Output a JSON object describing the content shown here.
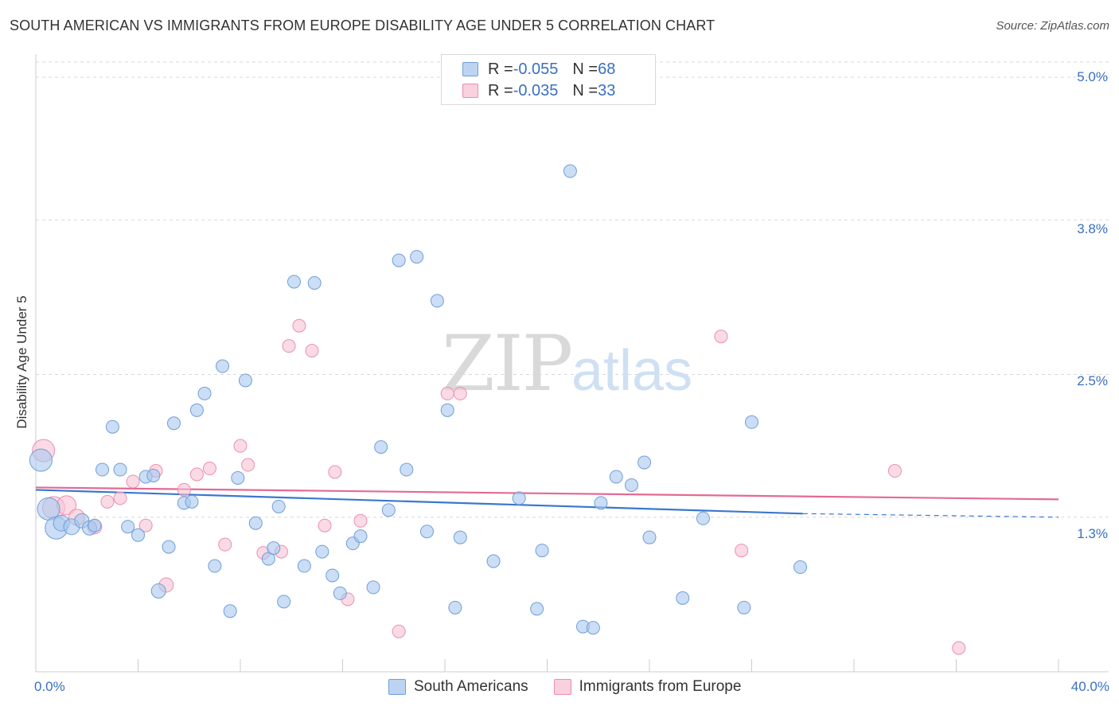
{
  "header": {
    "title": "SOUTH AMERICAN VS IMMIGRANTS FROM EUROPE DISABILITY AGE UNDER 5 CORRELATION CHART",
    "source": "Source: ZipAtlas.com"
  },
  "watermark": {
    "zip": "ZIP",
    "atlas": "atlas"
  },
  "legend_top": {
    "rows": [
      {
        "r_label": "R = ",
        "r_value": "-0.055",
        "n_label": "N = ",
        "n_value": "68"
      },
      {
        "r_label": "R = ",
        "r_value": "-0.035",
        "n_label": "N = ",
        "n_value": "33"
      }
    ]
  },
  "colors": {
    "blue_fill": "#a9c8ef",
    "blue_stroke": "#6f9fd8",
    "blue_line": "#3a78cf",
    "pink_fill": "#f7c3d3",
    "pink_stroke": "#ec8fab",
    "pink_line": "#e36a95",
    "axis_text": "#3a6fc4",
    "grid": "#d8d8d8"
  },
  "chart_data": {
    "type": "scatter",
    "title": "SOUTH AMERICAN VS IMMIGRANTS FROM EUROPE DISABILITY AGE UNDER 5 CORRELATION CHART",
    "ylabel": "Disability Age Under 5",
    "xlabel": "",
    "xlim": [
      0,
      40
    ],
    "ylim": [
      0.0,
      5.1
    ],
    "x_tick_labels": [
      "0.0%",
      "40.0%"
    ],
    "y_ticks": [
      1.3,
      2.5,
      3.8,
      5.0
    ],
    "y_tick_labels": [
      "1.3%",
      "2.5%",
      "3.8%",
      "5.0%"
    ],
    "grid": "horizontal dashed",
    "legend_position": "bottom",
    "series": [
      {
        "name": "South Americans",
        "color": "#a9c8ef",
        "R": -0.055,
        "N": 68,
        "trend": {
          "x": [
            0,
            30,
            40
          ],
          "y": [
            1.53,
            1.33,
            1.3
          ],
          "dashed_from_x": 30
        },
        "points": [
          {
            "x": 0.2,
            "y": 1.78,
            "s": 14
          },
          {
            "x": 0.5,
            "y": 1.37,
            "s": 14
          },
          {
            "x": 0.8,
            "y": 1.21,
            "s": 14
          },
          {
            "x": 1.0,
            "y": 1.25,
            "s": 10
          },
          {
            "x": 1.4,
            "y": 1.22,
            "s": 10
          },
          {
            "x": 1.8,
            "y": 1.27,
            "s": 9
          },
          {
            "x": 2.1,
            "y": 1.21,
            "s": 9
          },
          {
            "x": 2.3,
            "y": 1.23,
            "s": 8
          },
          {
            "x": 2.6,
            "y": 1.7,
            "s": 8
          },
          {
            "x": 3.0,
            "y": 2.06,
            "s": 8
          },
          {
            "x": 3.3,
            "y": 1.7,
            "s": 8
          },
          {
            "x": 3.6,
            "y": 1.22,
            "s": 8
          },
          {
            "x": 4.0,
            "y": 1.15,
            "s": 8
          },
          {
            "x": 4.3,
            "y": 1.64,
            "s": 8
          },
          {
            "x": 4.6,
            "y": 1.65,
            "s": 8
          },
          {
            "x": 4.8,
            "y": 0.68,
            "s": 9
          },
          {
            "x": 5.2,
            "y": 1.05,
            "s": 8
          },
          {
            "x": 5.4,
            "y": 2.09,
            "s": 8
          },
          {
            "x": 5.8,
            "y": 1.42,
            "s": 8
          },
          {
            "x": 6.1,
            "y": 1.43,
            "s": 8
          },
          {
            "x": 6.3,
            "y": 2.2,
            "s": 8
          },
          {
            "x": 6.6,
            "y": 2.34,
            "s": 8
          },
          {
            "x": 7.0,
            "y": 0.89,
            "s": 8
          },
          {
            "x": 7.3,
            "y": 2.57,
            "s": 8
          },
          {
            "x": 7.6,
            "y": 0.51,
            "s": 8
          },
          {
            "x": 7.9,
            "y": 1.63,
            "s": 8
          },
          {
            "x": 8.2,
            "y": 2.45,
            "s": 8
          },
          {
            "x": 8.6,
            "y": 1.25,
            "s": 8
          },
          {
            "x": 9.1,
            "y": 0.95,
            "s": 8
          },
          {
            "x": 9.3,
            "y": 1.04,
            "s": 8
          },
          {
            "x": 9.5,
            "y": 1.39,
            "s": 8
          },
          {
            "x": 9.7,
            "y": 0.59,
            "s": 8
          },
          {
            "x": 10.1,
            "y": 3.28,
            "s": 8
          },
          {
            "x": 10.5,
            "y": 0.89,
            "s": 8
          },
          {
            "x": 10.9,
            "y": 3.27,
            "s": 8
          },
          {
            "x": 11.2,
            "y": 1.01,
            "s": 8
          },
          {
            "x": 11.6,
            "y": 0.81,
            "s": 8
          },
          {
            "x": 11.9,
            "y": 0.66,
            "s": 8
          },
          {
            "x": 12.4,
            "y": 1.08,
            "s": 8
          },
          {
            "x": 12.7,
            "y": 1.14,
            "s": 8
          },
          {
            "x": 13.2,
            "y": 0.71,
            "s": 8
          },
          {
            "x": 13.5,
            "y": 1.89,
            "s": 8
          },
          {
            "x": 13.8,
            "y": 1.36,
            "s": 8
          },
          {
            "x": 14.2,
            "y": 3.46,
            "s": 8
          },
          {
            "x": 14.5,
            "y": 1.7,
            "s": 8
          },
          {
            "x": 14.9,
            "y": 3.49,
            "s": 8
          },
          {
            "x": 15.3,
            "y": 1.18,
            "s": 8
          },
          {
            "x": 15.7,
            "y": 3.12,
            "s": 8
          },
          {
            "x": 16.1,
            "y": 2.2,
            "s": 8
          },
          {
            "x": 16.4,
            "y": 0.54,
            "s": 8
          },
          {
            "x": 16.6,
            "y": 1.13,
            "s": 8
          },
          {
            "x": 17.9,
            "y": 0.93,
            "s": 8
          },
          {
            "x": 18.9,
            "y": 1.46,
            "s": 8
          },
          {
            "x": 19.6,
            "y": 0.53,
            "s": 8
          },
          {
            "x": 19.8,
            "y": 1.02,
            "s": 8
          },
          {
            "x": 20.9,
            "y": 4.21,
            "s": 8
          },
          {
            "x": 21.4,
            "y": 0.38,
            "s": 8
          },
          {
            "x": 21.8,
            "y": 0.37,
            "s": 8
          },
          {
            "x": 22.1,
            "y": 1.42,
            "s": 8
          },
          {
            "x": 22.7,
            "y": 1.64,
            "s": 8
          },
          {
            "x": 23.3,
            "y": 1.57,
            "s": 8
          },
          {
            "x": 23.8,
            "y": 1.76,
            "s": 8
          },
          {
            "x": 24.0,
            "y": 1.13,
            "s": 8
          },
          {
            "x": 25.3,
            "y": 0.62,
            "s": 8
          },
          {
            "x": 26.1,
            "y": 1.29,
            "s": 8
          },
          {
            "x": 27.7,
            "y": 0.54,
            "s": 8
          },
          {
            "x": 28.0,
            "y": 2.1,
            "s": 8
          },
          {
            "x": 29.9,
            "y": 0.88,
            "s": 8
          }
        ]
      },
      {
        "name": "Immigrants from Europe",
        "color": "#f7c3d3",
        "R": -0.035,
        "N": 33,
        "trend": {
          "x": [
            0,
            40
          ],
          "y": [
            1.55,
            1.45
          ]
        },
        "points": [
          {
            "x": 0.3,
            "y": 1.86,
            "s": 14
          },
          {
            "x": 0.7,
            "y": 1.38,
            "s": 14
          },
          {
            "x": 1.2,
            "y": 1.4,
            "s": 12
          },
          {
            "x": 1.6,
            "y": 1.3,
            "s": 10
          },
          {
            "x": 2.3,
            "y": 1.22,
            "s": 9
          },
          {
            "x": 2.8,
            "y": 1.43,
            "s": 8
          },
          {
            "x": 3.3,
            "y": 1.46,
            "s": 8
          },
          {
            "x": 3.8,
            "y": 1.6,
            "s": 8
          },
          {
            "x": 4.3,
            "y": 1.23,
            "s": 8
          },
          {
            "x": 4.7,
            "y": 1.69,
            "s": 8
          },
          {
            "x": 5.1,
            "y": 0.73,
            "s": 9
          },
          {
            "x": 5.8,
            "y": 1.53,
            "s": 8
          },
          {
            "x": 6.3,
            "y": 1.66,
            "s": 8
          },
          {
            "x": 6.8,
            "y": 1.71,
            "s": 8
          },
          {
            "x": 7.4,
            "y": 1.07,
            "s": 8
          },
          {
            "x": 8.0,
            "y": 1.9,
            "s": 8
          },
          {
            "x": 8.3,
            "y": 1.74,
            "s": 8
          },
          {
            "x": 8.9,
            "y": 1.0,
            "s": 8
          },
          {
            "x": 9.6,
            "y": 1.01,
            "s": 8
          },
          {
            "x": 9.9,
            "y": 2.74,
            "s": 8
          },
          {
            "x": 10.3,
            "y": 2.91,
            "s": 8
          },
          {
            "x": 10.8,
            "y": 2.7,
            "s": 8
          },
          {
            "x": 11.3,
            "y": 1.23,
            "s": 8
          },
          {
            "x": 11.7,
            "y": 1.68,
            "s": 8
          },
          {
            "x": 12.2,
            "y": 0.61,
            "s": 8
          },
          {
            "x": 12.7,
            "y": 1.27,
            "s": 8
          },
          {
            "x": 14.2,
            "y": 0.34,
            "s": 8
          },
          {
            "x": 16.1,
            "y": 2.34,
            "s": 8
          },
          {
            "x": 16.6,
            "y": 2.34,
            "s": 8
          },
          {
            "x": 26.8,
            "y": 2.82,
            "s": 8
          },
          {
            "x": 27.6,
            "y": 1.02,
            "s": 8
          },
          {
            "x": 33.6,
            "y": 1.69,
            "s": 8
          },
          {
            "x": 36.1,
            "y": 0.2,
            "s": 8
          }
        ]
      }
    ]
  }
}
